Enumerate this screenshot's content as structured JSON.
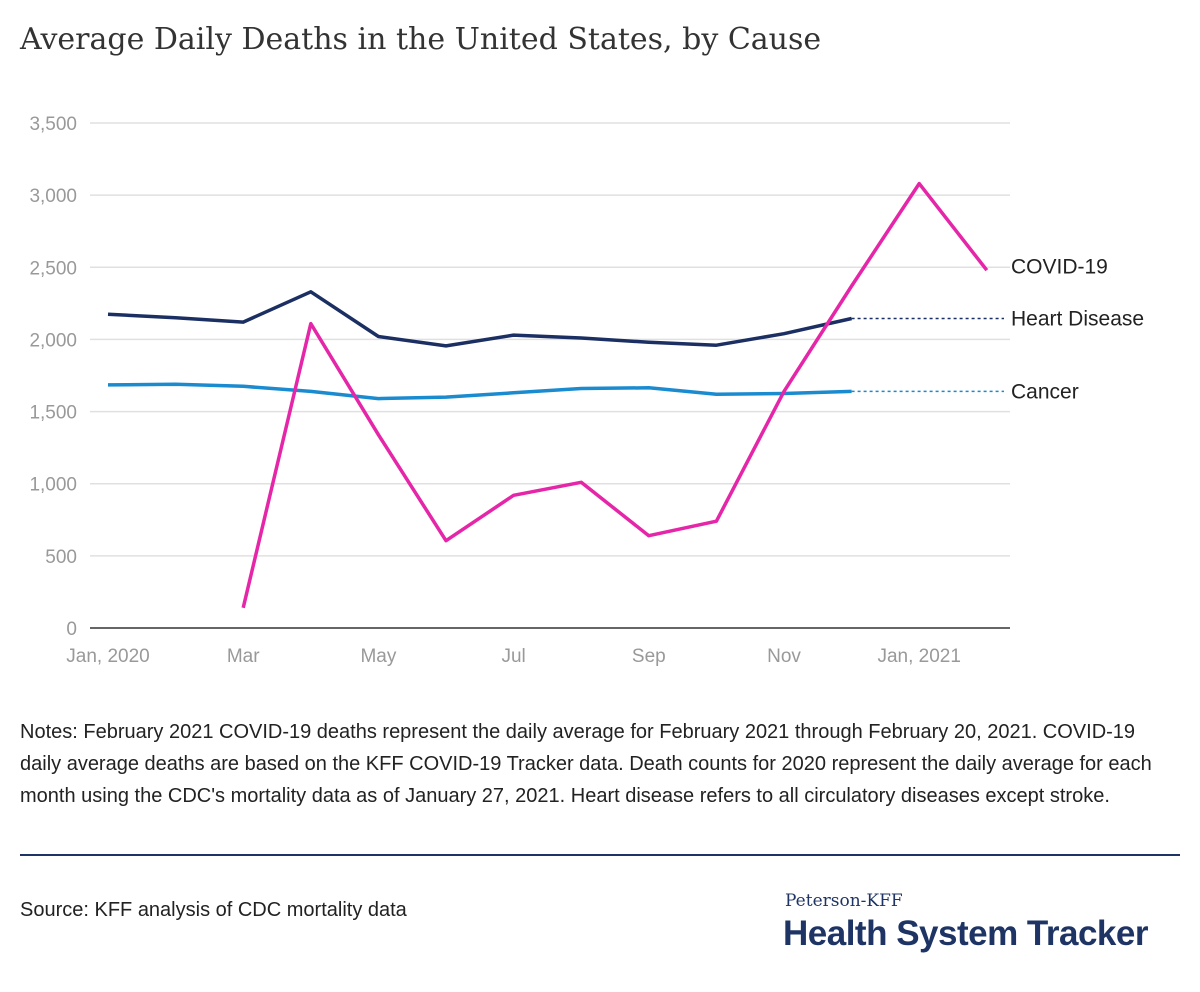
{
  "title": "Average Daily Deaths in the United States, by Cause",
  "notes": "Notes: February 2021 COVID-19 deaths represent the daily average for February 2021 through February 20, 2021. COVID-19 daily average deaths are based on the KFF COVID-19 Tracker data. Death counts for 2020 represent the daily average for each month using the CDC's mortality data as of January 27, 2021. Heart disease refers to all circulatory diseases except stroke.",
  "source": "Source: KFF analysis of CDC mortality data",
  "brand": {
    "top": "Peterson-KFF",
    "main": "Health System Tracker"
  },
  "chart_data": {
    "type": "line",
    "x": [
      "2020-01",
      "2020-02",
      "2020-03",
      "2020-04",
      "2020-05",
      "2020-06",
      "2020-07",
      "2020-08",
      "2020-09",
      "2020-10",
      "2020-11",
      "2020-12",
      "2021-01",
      "2021-02"
    ],
    "x_ticks": [
      {
        "x": "2020-01",
        "label": "Jan, 2020"
      },
      {
        "x": "2020-03",
        "label": "Mar"
      },
      {
        "x": "2020-05",
        "label": "May"
      },
      {
        "x": "2020-07",
        "label": "Jul"
      },
      {
        "x": "2020-09",
        "label": "Sep"
      },
      {
        "x": "2020-11",
        "label": "Nov"
      },
      {
        "x": "2021-01",
        "label": "Jan, 2021"
      }
    ],
    "y_ticks": [
      0,
      500,
      1000,
      1500,
      2000,
      2500,
      3000,
      3500
    ],
    "y_tick_labels": [
      "0",
      "500",
      "1,000",
      "1,500",
      "2,000",
      "2,500",
      "3,000",
      "3,500"
    ],
    "ylim": [
      0,
      3500
    ],
    "grid": true,
    "series": [
      {
        "name": "COVID-19",
        "color": "#e526a8",
        "values": [
          null,
          null,
          140,
          2110,
          1340,
          605,
          920,
          1010,
          640,
          740,
          1640,
          2370,
          3080,
          2480
        ]
      },
      {
        "name": "Heart Disease",
        "color": "#1b2f63",
        "values": [
          2175,
          2150,
          2120,
          2330,
          2020,
          1955,
          2030,
          2010,
          1980,
          1960,
          2040,
          2145,
          null,
          null
        ]
      },
      {
        "name": "Cancer",
        "color": "#1b8bd0",
        "values": [
          1685,
          1690,
          1675,
          1640,
          1590,
          1600,
          1630,
          1660,
          1665,
          1620,
          1625,
          1640,
          null,
          null
        ]
      }
    ]
  }
}
